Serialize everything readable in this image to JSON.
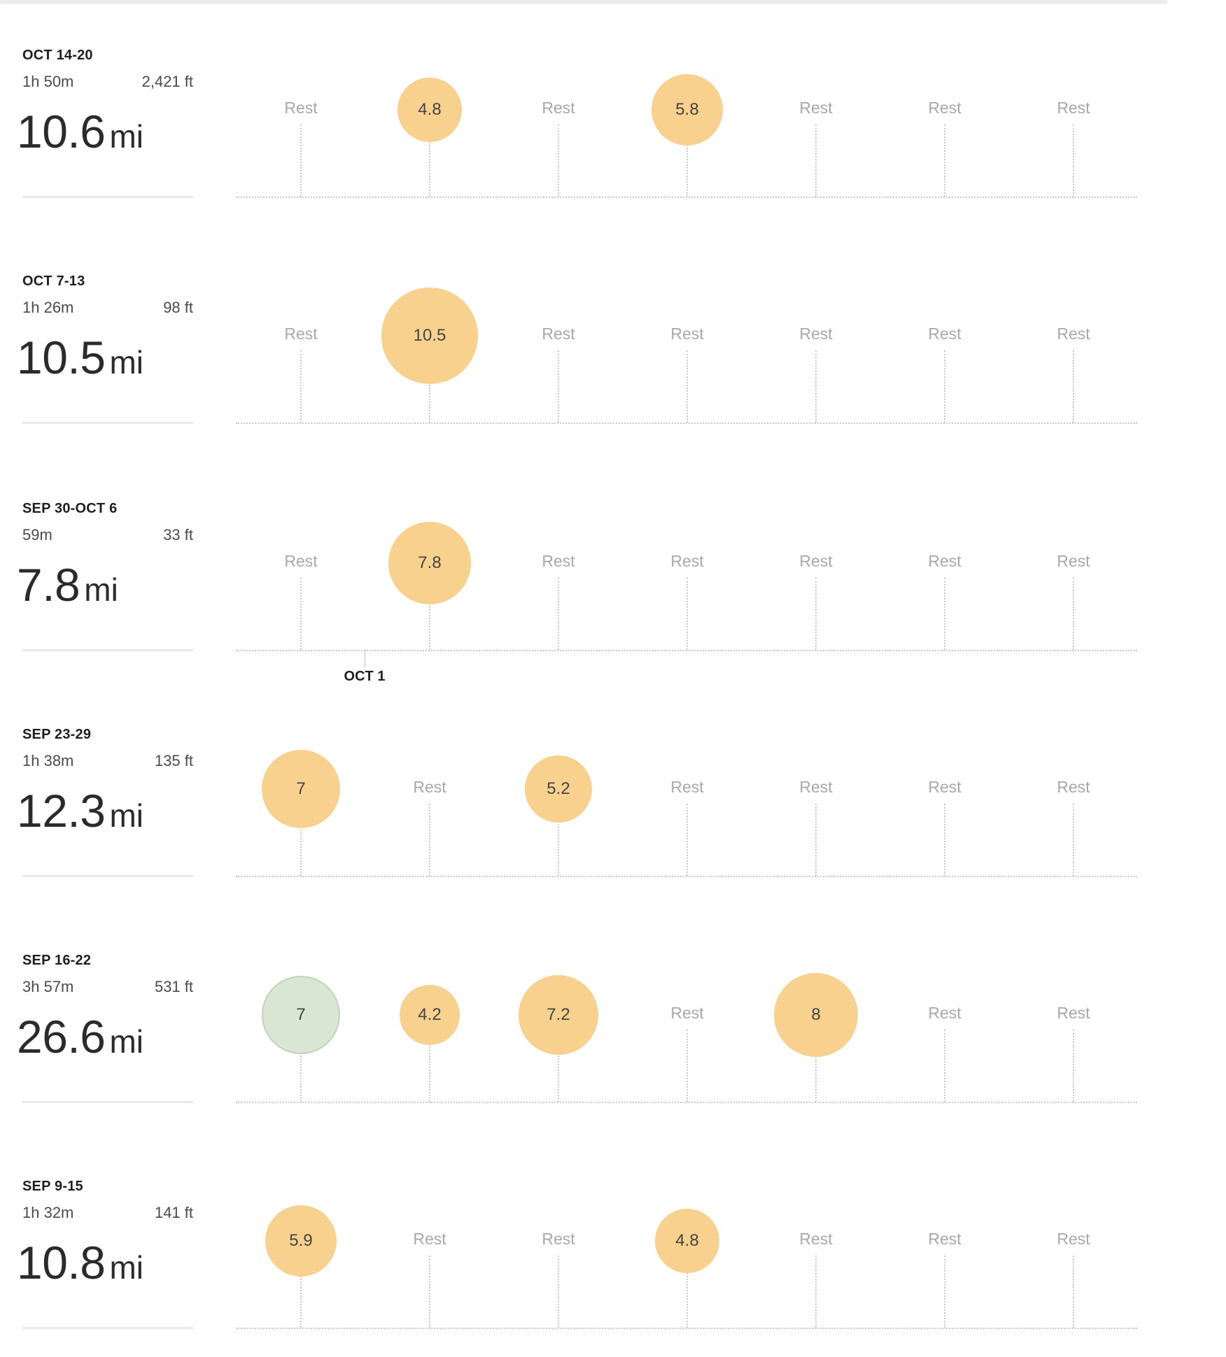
{
  "unit_label": "mi",
  "rest_label": "Rest",
  "colors": {
    "run": "#f9d18f",
    "alt": "#d8e6d3",
    "rest_text": "#a8a8a8",
    "grid": "#c8c8c8"
  },
  "month_marker": {
    "label": "OCT 1",
    "week_index": 2
  },
  "weeks": [
    {
      "range": "OCT 14-20",
      "duration": "1h 50m",
      "elevation": "2,421 ft",
      "total": "10.6",
      "days": [
        {
          "rest": true
        },
        {
          "miles": 4.8
        },
        {
          "rest": true
        },
        {
          "miles": 5.8
        },
        {
          "rest": true
        },
        {
          "rest": true
        },
        {
          "rest": true
        }
      ]
    },
    {
      "range": "OCT 7-13",
      "duration": "1h 26m",
      "elevation": "98 ft",
      "total": "10.5",
      "days": [
        {
          "rest": true
        },
        {
          "miles": 10.5
        },
        {
          "rest": true
        },
        {
          "rest": true
        },
        {
          "rest": true
        },
        {
          "rest": true
        },
        {
          "rest": true
        }
      ]
    },
    {
      "range": "SEP 30-OCT 6",
      "duration": "59m",
      "elevation": "33 ft",
      "total": "7.8",
      "days": [
        {
          "rest": true
        },
        {
          "miles": 7.8
        },
        {
          "rest": true
        },
        {
          "rest": true
        },
        {
          "rest": true
        },
        {
          "rest": true
        },
        {
          "rest": true
        }
      ]
    },
    {
      "range": "SEP 23-29",
      "duration": "1h 38m",
      "elevation": "135 ft",
      "total": "12.3",
      "days": [
        {
          "miles": 7
        },
        {
          "rest": true
        },
        {
          "miles": 5.2
        },
        {
          "rest": true
        },
        {
          "rest": true
        },
        {
          "rest": true
        },
        {
          "rest": true
        }
      ]
    },
    {
      "range": "SEP 16-22",
      "duration": "3h 57m",
      "elevation": "531 ft",
      "total": "26.6",
      "days": [
        {
          "miles": 7,
          "variant": "alt"
        },
        {
          "miles": 4.2
        },
        {
          "miles": 7.2
        },
        {
          "rest": true
        },
        {
          "miles": 8
        },
        {
          "rest": true
        },
        {
          "rest": true
        }
      ]
    },
    {
      "range": "SEP 9-15",
      "duration": "1h 32m",
      "elevation": "141 ft",
      "total": "10.8",
      "days": [
        {
          "miles": 5.9
        },
        {
          "rest": true
        },
        {
          "rest": true
        },
        {
          "miles": 4.8
        },
        {
          "rest": true
        },
        {
          "rest": true
        },
        {
          "rest": true
        }
      ]
    }
  ]
}
